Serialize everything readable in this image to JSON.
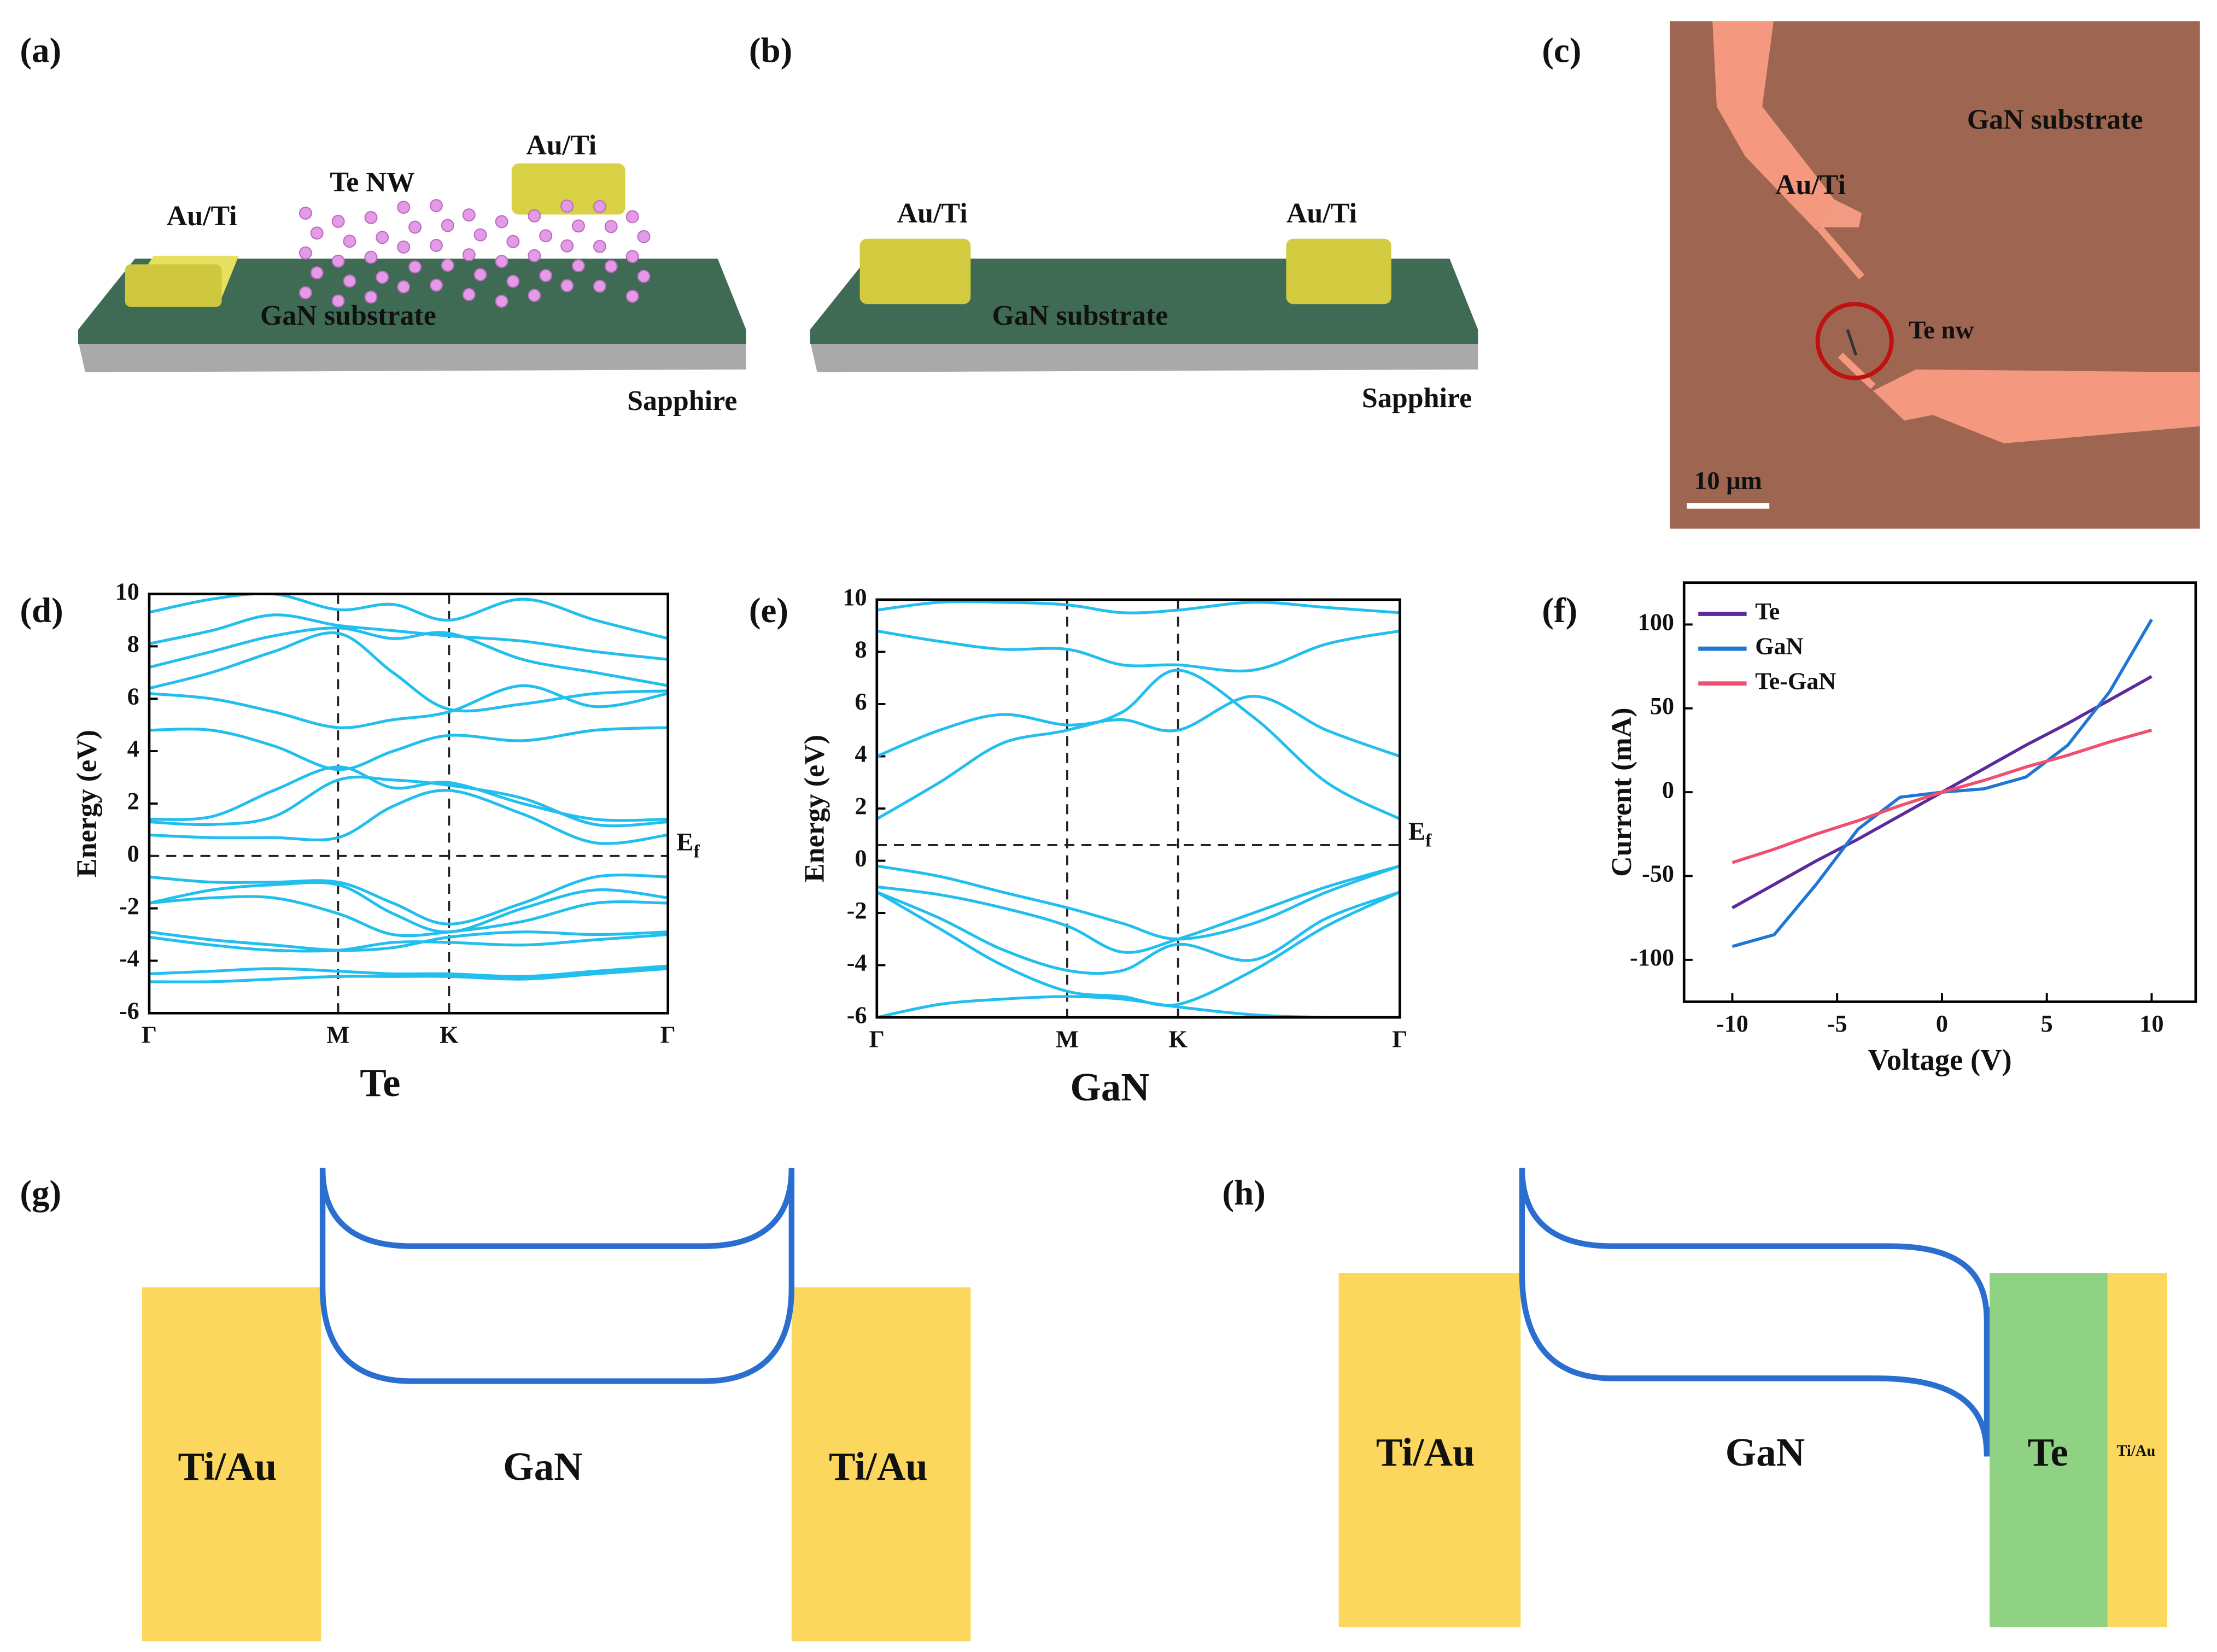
{
  "panel_labels": [
    "(a)",
    "(b)",
    "(c)",
    "(d)",
    "(e)",
    "(f)",
    "(g)",
    "(h)"
  ],
  "panel_a": {
    "labels": [
      "Au/Ti",
      "Te NW",
      "Au/Ti",
      "GaN substrate",
      "Sapphire"
    ]
  },
  "panel_b": {
    "labels": [
      "Au/Ti",
      "Au/Ti",
      "GaN substrate",
      "Sapphire"
    ]
  },
  "panel_c": {
    "labels": [
      "GaN substrate",
      "Au/Ti",
      "Te nw"
    ],
    "scale_bar": "10 μm"
  },
  "chart_data": [
    {
      "type": "line",
      "smooth": true,
      "x_label": "Te",
      "y_label": "Energy (eV)",
      "x": [
        0,
        0.12,
        0.24,
        0.364,
        0.47,
        0.578,
        0.72,
        0.86,
        1
      ],
      "xlim": [
        0,
        1
      ],
      "ylim": [
        -6,
        10
      ],
      "xticks": [
        {
          "value": 0,
          "label": "Γ"
        },
        {
          "value": 0.364,
          "label": "M"
        },
        {
          "value": 0.578,
          "label": "K"
        },
        {
          "value": 1,
          "label": "Γ"
        }
      ],
      "yticks": [
        -6,
        -4,
        -2,
        0,
        2,
        4,
        6,
        8,
        10
      ],
      "xgrid": "dashed",
      "fermi_level": 0,
      "fermi_label": {
        "main": "E",
        "sub": "f"
      },
      "series": [
        {
          "color": "#22bfee",
          "values": [
            0.8,
            0.7,
            0.7,
            0.7,
            1.9,
            2.5,
            1.6,
            0.5,
            0.8
          ]
        },
        {
          "color": "#22bfee",
          "values": [
            1.3,
            1.2,
            1.5,
            2.9,
            2.9,
            2.7,
            2.2,
            1.2,
            1.3
          ]
        },
        {
          "color": "#22bfee",
          "values": [
            1.4,
            1.5,
            2.5,
            3.4,
            2.6,
            2.8,
            2.0,
            1.4,
            1.4
          ]
        },
        {
          "color": "#22bfee",
          "values": [
            4.8,
            4.8,
            4.2,
            3.3,
            4.0,
            4.6,
            4.4,
            4.8,
            4.9
          ]
        },
        {
          "color": "#22bfee",
          "values": [
            6.2,
            6.0,
            5.5,
            4.9,
            5.2,
            5.5,
            6.5,
            5.7,
            6.2
          ]
        },
        {
          "color": "#22bfee",
          "values": [
            6.4,
            7.0,
            7.8,
            8.5,
            7.0,
            5.6,
            5.8,
            6.2,
            6.3
          ]
        },
        {
          "color": "#22bfee",
          "values": [
            7.2,
            7.8,
            8.4,
            8.7,
            8.3,
            8.5,
            7.5,
            7.0,
            6.5
          ]
        },
        {
          "color": "#22bfee",
          "values": [
            8.1,
            8.6,
            9.2,
            8.8,
            8.6,
            8.4,
            8.2,
            7.8,
            7.5
          ]
        },
        {
          "color": "#22bfee",
          "values": [
            9.3,
            9.8,
            10,
            9.4,
            9.6,
            9.0,
            9.8,
            9.0,
            8.3
          ]
        },
        {
          "color": "#22bfee",
          "values": [
            -0.8,
            -1.0,
            -1.0,
            -1.0,
            -1.8,
            -2.6,
            -1.8,
            -0.8,
            -0.8
          ]
        },
        {
          "color": "#22bfee",
          "values": [
            -1.8,
            -1.3,
            -1.1,
            -1.1,
            -2.2,
            -2.9,
            -2.0,
            -1.3,
            -1.6
          ]
        },
        {
          "color": "#22bfee",
          "values": [
            -1.8,
            -1.6,
            -1.6,
            -2.2,
            -3.0,
            -2.9,
            -2.5,
            -1.8,
            -1.8
          ]
        },
        {
          "color": "#22bfee",
          "values": [
            -2.9,
            -3.2,
            -3.4,
            -3.6,
            -3.5,
            -3.1,
            -2.9,
            -3.0,
            -2.9
          ]
        },
        {
          "color": "#22bfee",
          "values": [
            -3.1,
            -3.4,
            -3.6,
            -3.6,
            -3.3,
            -3.3,
            -3.4,
            -3.2,
            -3.0
          ]
        },
        {
          "color": "#22bfee",
          "values": [
            -4.5,
            -4.4,
            -4.3,
            -4.4,
            -4.5,
            -4.5,
            -4.6,
            -4.4,
            -4.2
          ]
        },
        {
          "color": "#22bfee",
          "values": [
            -4.8,
            -4.8,
            -4.7,
            -4.6,
            -4.6,
            -4.6,
            -4.7,
            -4.5,
            -4.3
          ]
        }
      ]
    },
    {
      "type": "line",
      "smooth": true,
      "x_label": "GaN",
      "y_label": "Energy (eV)",
      "x": [
        0,
        0.12,
        0.24,
        0.364,
        0.47,
        0.576,
        0.72,
        0.86,
        1
      ],
      "xlim": [
        0,
        1
      ],
      "ylim": [
        -6,
        10
      ],
      "xticks": [
        {
          "value": 0,
          "label": "Γ"
        },
        {
          "value": 0.364,
          "label": "M"
        },
        {
          "value": 0.576,
          "label": "K"
        },
        {
          "value": 1,
          "label": "Γ"
        }
      ],
      "yticks": [
        -6,
        -4,
        -2,
        0,
        2,
        4,
        6,
        8,
        10
      ],
      "xgrid": "dashed",
      "fermi_level": 0.6,
      "fermi_label": {
        "main": "E",
        "sub": "f"
      },
      "series": [
        {
          "color": "#22bfee",
          "values": [
            1.6,
            3.0,
            4.5,
            5.0,
            5.7,
            7.3,
            5.5,
            3.0,
            1.6
          ]
        },
        {
          "color": "#22bfee",
          "values": [
            4.0,
            5.0,
            5.6,
            5.2,
            5.4,
            5.0,
            6.3,
            5.0,
            4.0
          ]
        },
        {
          "color": "#22bfee",
          "values": [
            8.8,
            8.4,
            8.1,
            8.1,
            7.5,
            7.5,
            7.3,
            8.3,
            8.8
          ]
        },
        {
          "color": "#22bfee",
          "values": [
            9.6,
            9.9,
            9.9,
            9.8,
            9.5,
            9.6,
            9.9,
            9.7,
            9.5
          ]
        },
        {
          "color": "#22bfee",
          "values": [
            -0.2,
            -0.6,
            -1.2,
            -1.8,
            -2.4,
            -3.0,
            -2.4,
            -1.2,
            -0.2
          ]
        },
        {
          "color": "#22bfee",
          "values": [
            -1.0,
            -1.3,
            -1.8,
            -2.5,
            -3.5,
            -3.0,
            -2.0,
            -1.0,
            -0.2
          ]
        },
        {
          "color": "#22bfee",
          "values": [
            -1.2,
            -2.2,
            -3.4,
            -4.2,
            -4.2,
            -3.2,
            -3.8,
            -2.2,
            -1.2
          ]
        },
        {
          "color": "#22bfee",
          "values": [
            -1.2,
            -2.6,
            -4.0,
            -5.0,
            -5.2,
            -5.5,
            -4.2,
            -2.5,
            -1.2
          ]
        },
        {
          "color": "#22bfee",
          "values": [
            -6.0,
            -5.5,
            -5.3,
            -5.2,
            -5.3,
            -5.6,
            -5.9,
            -6.0,
            -6.0
          ]
        }
      ]
    },
    {
      "type": "line",
      "smooth": false,
      "x_label": "Voltage (V)",
      "y_label": "Current (mA)",
      "x": [
        -10,
        -8,
        -6,
        -4,
        -2,
        0,
        2,
        4,
        6,
        8,
        10
      ],
      "xlim": [
        -12.3,
        12.1
      ],
      "ylim": [
        -125,
        125
      ],
      "xticks": [
        -10,
        -5,
        0,
        5,
        10
      ],
      "yticks": [
        -100,
        -50,
        0,
        50,
        100
      ],
      "legend": "upper left",
      "series": [
        {
          "name": "Te",
          "color": "#5b2a9c",
          "values": [
            -69,
            -55,
            -41,
            -28,
            -14,
            0,
            14,
            28,
            41,
            55,
            69
          ]
        },
        {
          "name": "GaN",
          "color": "#1f77d4",
          "values": [
            -92,
            -85,
            -55,
            -22,
            -3,
            0,
            2,
            9,
            28,
            60,
            103
          ]
        },
        {
          "name": "Te-GaN",
          "color": "#f0506e",
          "values": [
            -42,
            -34,
            -25,
            -17,
            -8,
            0,
            7,
            15,
            22,
            30,
            37
          ]
        }
      ]
    }
  ],
  "panel_g": {
    "labels": [
      "Ti/Au",
      "GaN",
      "Ti/Au"
    ]
  },
  "panel_h": {
    "labels": [
      "Ti/Au",
      "GaN",
      "Te",
      "Ti/Au"
    ]
  }
}
